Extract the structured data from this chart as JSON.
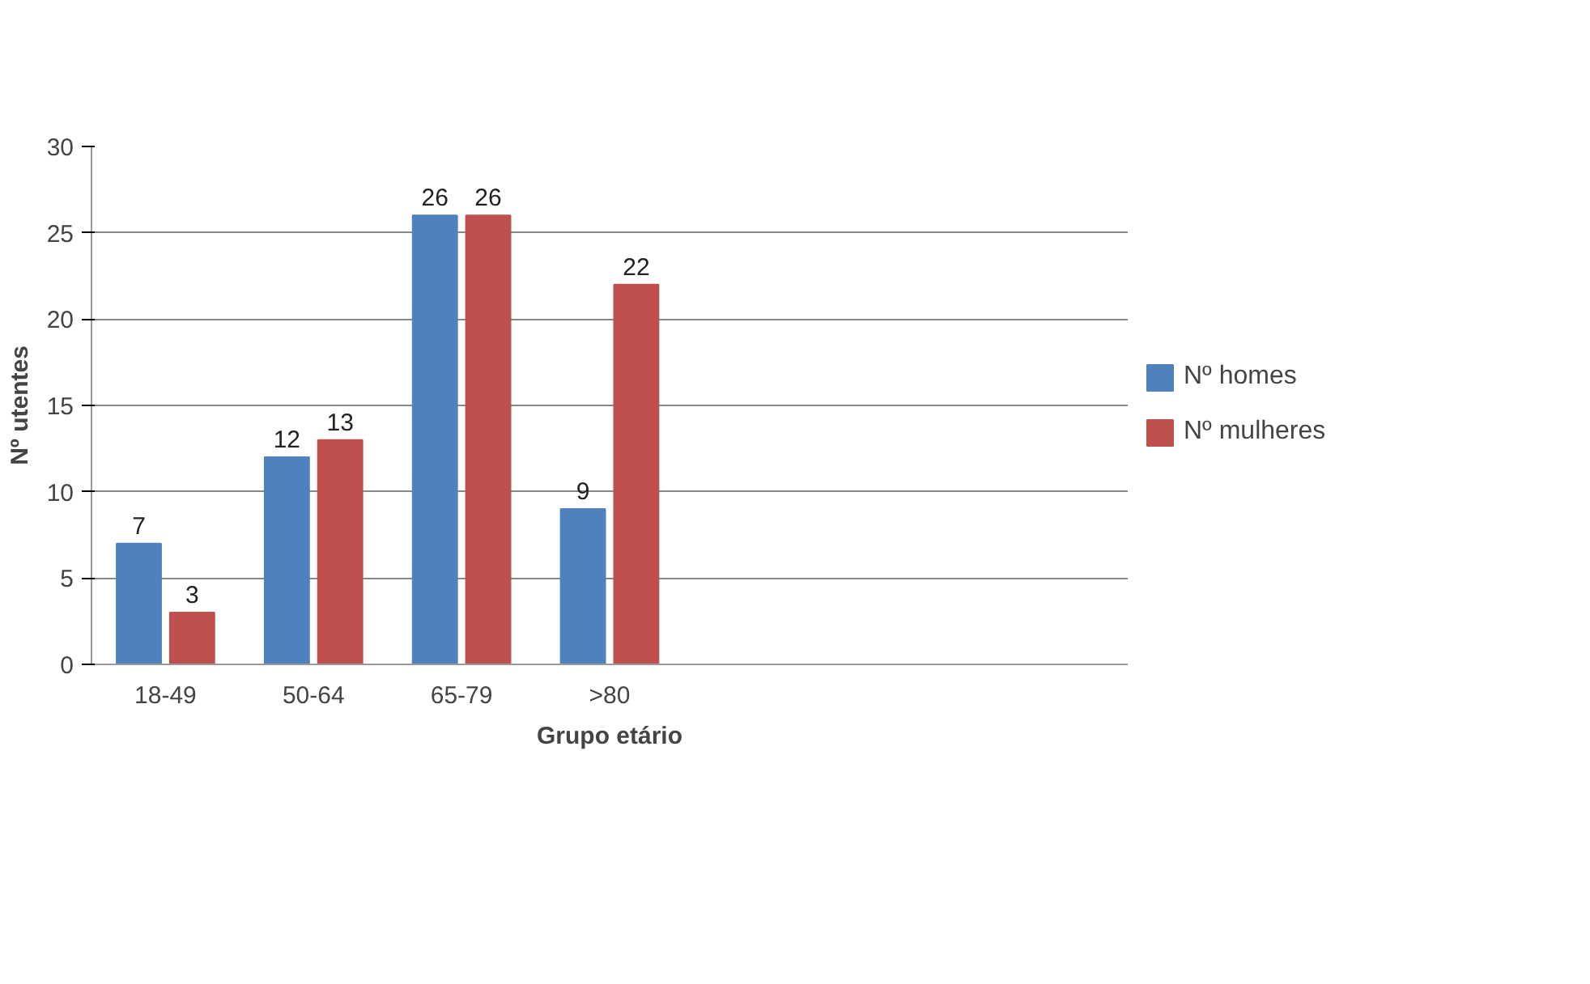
{
  "chart_data": {
    "type": "bar",
    "xlabel": "Grupo etário",
    "ylabel": "Nº utentes",
    "categories": [
      "18-49",
      "50-64",
      "65-79",
      ">80",
      null,
      null,
      null
    ],
    "series": [
      {
        "name": "Nº homes",
        "color": "#4f81bd",
        "values": [
          7,
          12,
          26,
          9,
          null,
          null,
          null
        ]
      },
      {
        "name": "Nº mulheres",
        "color": "#c0504d",
        "values": [
          3,
          13,
          26,
          22,
          null,
          null,
          null
        ]
      }
    ],
    "ylim": [
      0,
      30
    ],
    "yticks": [
      0,
      5,
      10,
      15,
      20,
      25,
      30
    ],
    "grid": "y",
    "legend": "right",
    "data_labels": true
  }
}
